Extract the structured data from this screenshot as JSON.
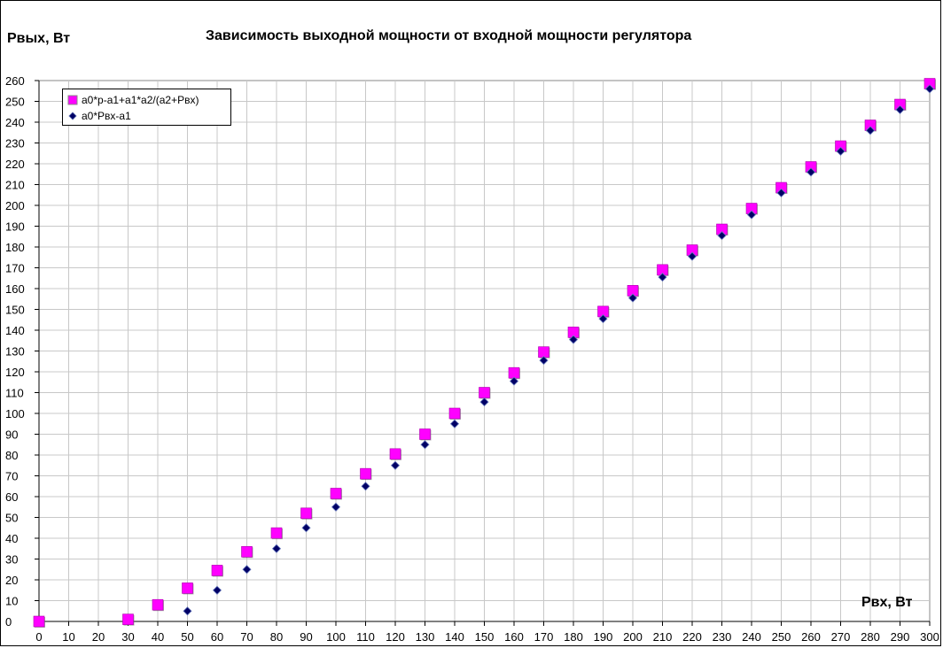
{
  "chart_data": {
    "type": "scatter",
    "title": "Зависимость выходной мощности от входной мощности регулятора",
    "xlabel": "Pвх, Вт",
    "ylabel": "Pвых, Вт",
    "xlim": [
      0,
      300
    ],
    "ylim": [
      0,
      260
    ],
    "x_ticks": [
      0,
      10,
      20,
      30,
      40,
      50,
      60,
      70,
      80,
      90,
      100,
      110,
      120,
      130,
      140,
      150,
      160,
      170,
      180,
      190,
      200,
      210,
      220,
      230,
      240,
      250,
      260,
      270,
      280,
      290,
      300
    ],
    "y_ticks": [
      0,
      10,
      20,
      30,
      40,
      50,
      60,
      70,
      80,
      90,
      100,
      110,
      120,
      130,
      140,
      150,
      160,
      170,
      180,
      190,
      200,
      210,
      220,
      230,
      240,
      250,
      260
    ],
    "grid": true,
    "legend_position": "top-left",
    "series": [
      {
        "name": "a0*p-a1+a1*a2/(a2+Pвх)",
        "marker": "square",
        "color": "#ff00ff",
        "points": [
          [
            0,
            0
          ],
          [
            30,
            1
          ],
          [
            40,
            8
          ],
          [
            50,
            16
          ],
          [
            60,
            24.5
          ],
          [
            70,
            33.5
          ],
          [
            80,
            42.5
          ],
          [
            90,
            52
          ],
          [
            100,
            61.5
          ],
          [
            110,
            71
          ],
          [
            120,
            80.5
          ],
          [
            130,
            90
          ],
          [
            140,
            100
          ],
          [
            150,
            110
          ],
          [
            160,
            119.5
          ],
          [
            170,
            129.5
          ],
          [
            180,
            139
          ],
          [
            190,
            149
          ],
          [
            200,
            159
          ],
          [
            210,
            169
          ],
          [
            220,
            178.5
          ],
          [
            230,
            188.5
          ],
          [
            240,
            198.5
          ],
          [
            250,
            208.5
          ],
          [
            260,
            218.5
          ],
          [
            270,
            228.5
          ],
          [
            280,
            238.5
          ],
          [
            290,
            248.5
          ],
          [
            300,
            258.5
          ]
        ]
      },
      {
        "name": "a0*Pвх-a1",
        "marker": "diamond",
        "color": "#000066",
        "points": [
          [
            50,
            5
          ],
          [
            60,
            15
          ],
          [
            70,
            25
          ],
          [
            80,
            35
          ],
          [
            90,
            45
          ],
          [
            100,
            55
          ],
          [
            110,
            65
          ],
          [
            120,
            75
          ],
          [
            130,
            85
          ],
          [
            140,
            95
          ],
          [
            150,
            105.5
          ],
          [
            160,
            115.5
          ],
          [
            170,
            125.5
          ],
          [
            180,
            135.5
          ],
          [
            190,
            145.5
          ],
          [
            200,
            155.5
          ],
          [
            210,
            165.5
          ],
          [
            220,
            175.5
          ],
          [
            230,
            185.5
          ],
          [
            240,
            195.5
          ],
          [
            250,
            206
          ],
          [
            260,
            216
          ],
          [
            270,
            226
          ],
          [
            280,
            236
          ],
          [
            290,
            246
          ],
          [
            300,
            256
          ]
        ]
      }
    ]
  }
}
